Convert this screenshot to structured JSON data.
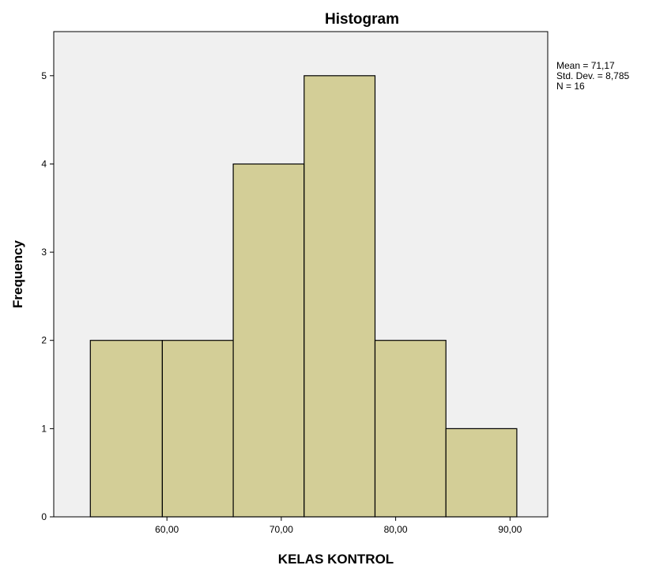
{
  "chart_data": {
    "type": "bar",
    "title": "Histogram",
    "xlabel": "KELAS KONTROL",
    "ylabel": "Frequency",
    "bins": [
      {
        "start": 53.3,
        "end": 59.6,
        "value": 2
      },
      {
        "start": 59.6,
        "end": 65.8,
        "value": 2
      },
      {
        "start": 65.8,
        "end": 72.0,
        "value": 4
      },
      {
        "start": 72.0,
        "end": 78.2,
        "value": 5
      },
      {
        "start": 78.2,
        "end": 84.4,
        "value": 2
      },
      {
        "start": 84.4,
        "end": 90.6,
        "value": 1
      }
    ],
    "xlim": [
      50.1,
      93.3
    ],
    "ylim": [
      0,
      5.5
    ],
    "xticks": [
      {
        "value": 60,
        "label": "60,00"
      },
      {
        "value": 70,
        "label": "70,00"
      },
      {
        "value": 80,
        "label": "80,00"
      },
      {
        "value": 90,
        "label": "90,00"
      }
    ],
    "yticks": [
      {
        "value": 0,
        "label": "0"
      },
      {
        "value": 1,
        "label": "1"
      },
      {
        "value": 2,
        "label": "2"
      },
      {
        "value": 3,
        "label": "3"
      },
      {
        "value": 4,
        "label": "4"
      },
      {
        "value": 5,
        "label": "5"
      }
    ],
    "legend": {
      "position": "top-right",
      "lines": [
        "Mean = 71,17",
        "Std. Dev. = 8,785",
        "N = 16"
      ]
    },
    "grid": false,
    "colors": {
      "bar_fill": "#d3ce97",
      "plot_background": "#f0f0f0"
    }
  }
}
